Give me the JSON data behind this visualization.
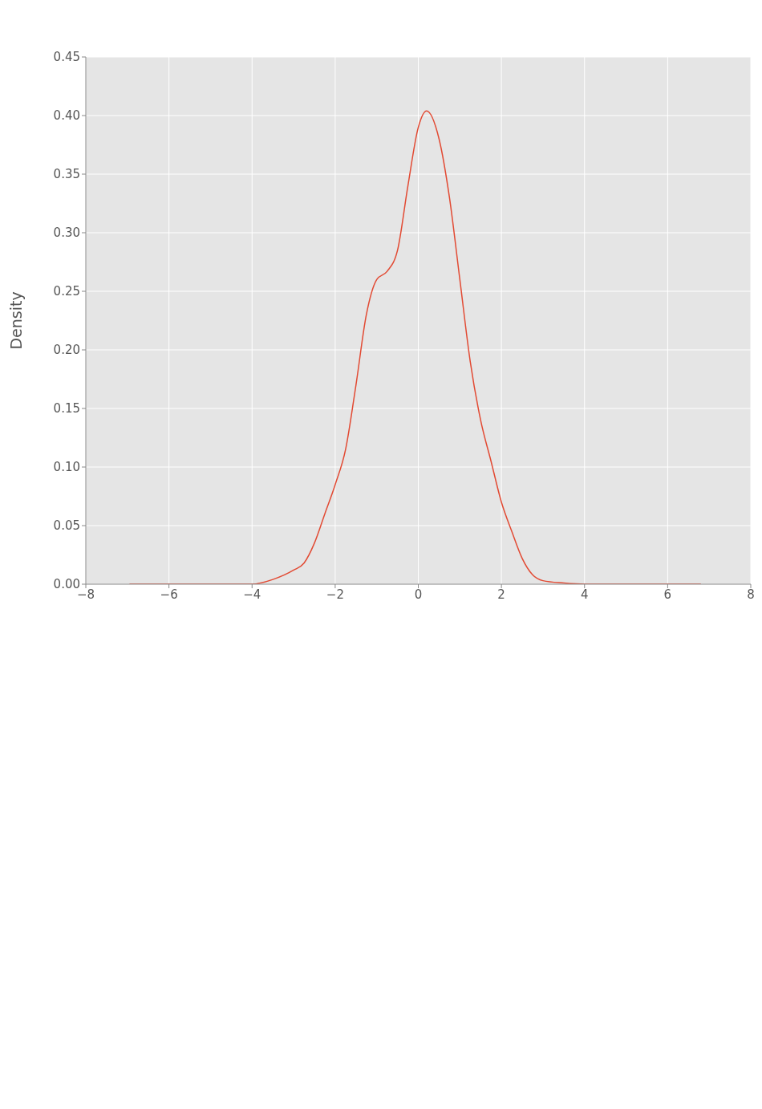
{
  "chart_data": {
    "type": "line",
    "ylabel": "Density",
    "x": [
      -6.95,
      -4,
      -3.5,
      -3,
      -2.75,
      -2.5,
      -2.25,
      -2,
      -1.75,
      -1.5,
      -1.25,
      -1,
      -0.75,
      -0.5,
      -0.25,
      0,
      0.2,
      0.5,
      0.75,
      1,
      1.25,
      1.5,
      1.75,
      2,
      2.25,
      2.5,
      2.75,
      3,
      3.5,
      4,
      6.8
    ],
    "series": [
      {
        "color": "#e24a33",
        "values": [
          0,
          0,
          0.004,
          0.012,
          0.018,
          0.035,
          0.06,
          0.085,
          0.115,
          0.17,
          0.23,
          0.26,
          0.267,
          0.285,
          0.34,
          0.39,
          0.404,
          0.38,
          0.33,
          0.26,
          0.19,
          0.14,
          0.105,
          0.07,
          0.045,
          0.022,
          0.008,
          0.003,
          0.001,
          0,
          0
        ]
      }
    ],
    "xlim": [
      -8,
      8
    ],
    "xticks": [
      {
        "value": -8,
        "label": "−8"
      },
      {
        "value": -6,
        "label": "−6"
      },
      {
        "value": -4,
        "label": "−4"
      },
      {
        "value": -2,
        "label": "−2"
      },
      0,
      2,
      4,
      6,
      8
    ],
    "ylim": [
      0,
      0.45
    ],
    "yticks": [
      {
        "value": 0,
        "label": "0.00"
      },
      {
        "value": 0.05,
        "label": "0.05"
      },
      {
        "value": 0.1,
        "label": "0.10"
      },
      {
        "value": 0.15,
        "label": "0.15"
      },
      {
        "value": 0.2,
        "label": "0.20"
      },
      {
        "value": 0.25,
        "label": "0.25"
      },
      {
        "value": 0.3,
        "label": "0.30"
      },
      {
        "value": 0.35,
        "label": "0.35"
      },
      {
        "value": 0.4,
        "label": "0.40"
      },
      {
        "value": 0.45,
        "label": "0.45"
      }
    ],
    "grid": true,
    "marker": "none",
    "line_style": "solid"
  }
}
